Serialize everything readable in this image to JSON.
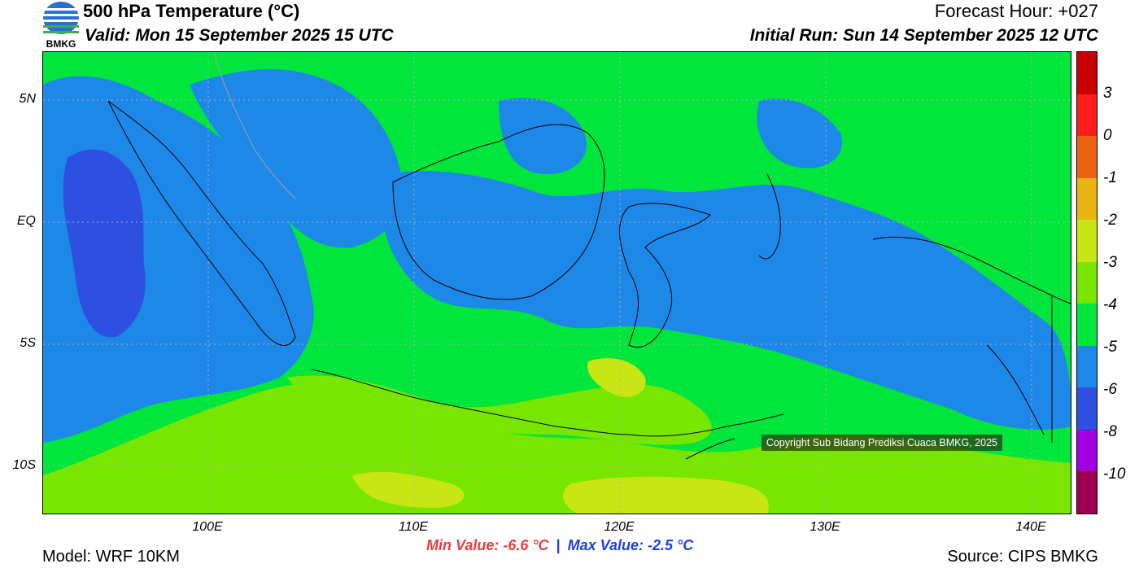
{
  "header": {
    "title": "500 hPa Temperature (°C)",
    "valid": "Valid: Mon 15 September 2025 15 UTC",
    "forecast_hour": "Forecast Hour: +027",
    "initial_run": "Initial Run: Sun 14 September 2025 12 UTC",
    "logo_text": "BMKG"
  },
  "map": {
    "lat_labels": [
      "5N",
      "EQ",
      "5S",
      "10S"
    ],
    "lon_labels": [
      "100E",
      "110E",
      "120E",
      "130E",
      "140E"
    ],
    "copyright": "Copyright Sub Bidang Prediksi Cuaca BMKG, 2025",
    "colors": {
      "band_-6": "#1e88e8",
      "band_-5": "#00e63c",
      "band_-4": "#78e600",
      "band_-3": "#c8e600",
      "band_-8": "#2d50e0",
      "coast": "#000000",
      "border_gray": "#a0a0a0"
    }
  },
  "colorbar": {
    "labels": [
      "3",
      "0",
      "-1",
      "-2",
      "-3",
      "-4",
      "-5",
      "-6",
      "-8",
      "-10"
    ],
    "colors": [
      "#c80000",
      "#ff1e1e",
      "#e86414",
      "#e8b414",
      "#c8e614",
      "#78e600",
      "#00e63c",
      "#1e88e8",
      "#2d50e0",
      "#a000e0",
      "#a00050"
    ]
  },
  "footer": {
    "min_value": "Min Value: -6.6 °C",
    "separator": "|",
    "max_value": "Max Value: -2.5 °C",
    "model": "Model: WRF 10KM",
    "source": "Source: CIPS BMKG"
  }
}
